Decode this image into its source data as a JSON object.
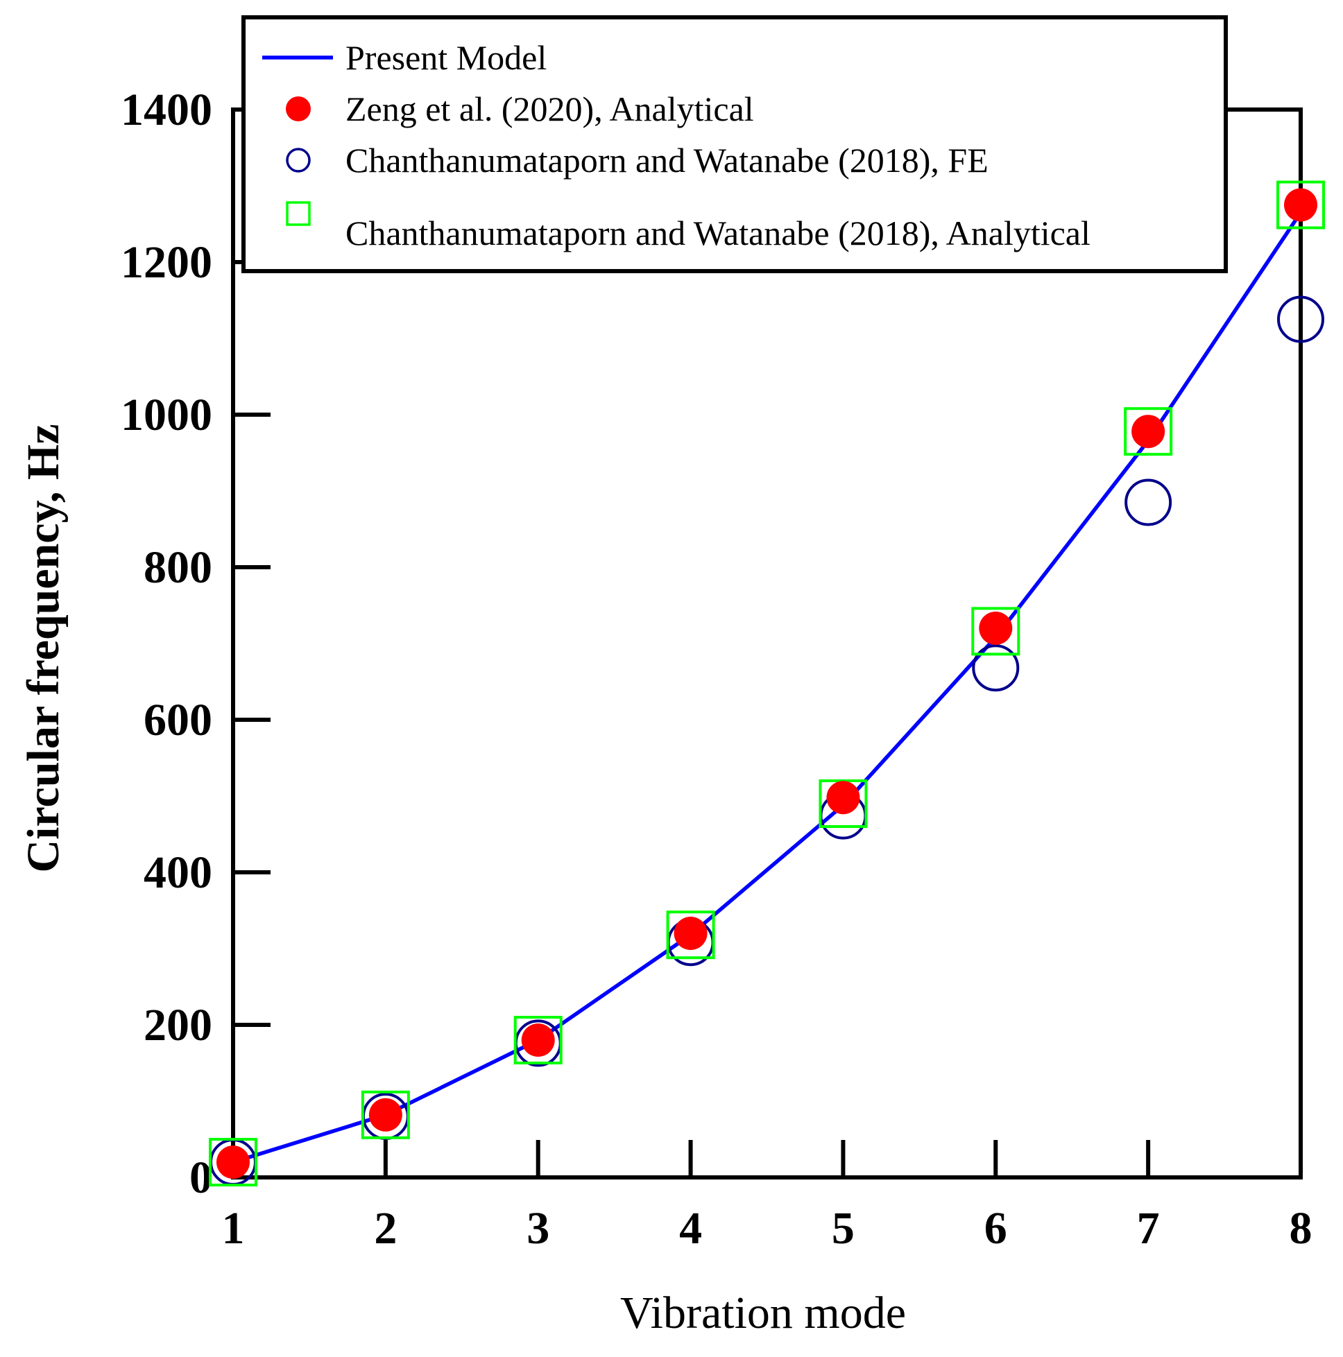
{
  "chart_data": {
    "type": "line",
    "title": "",
    "xlabel": "Vibration mode",
    "ylabel": "Circular frequency, Hz",
    "xlim": [
      1,
      8
    ],
    "ylim": [
      0,
      1400
    ],
    "x_ticks": [
      1,
      2,
      3,
      4,
      5,
      6,
      7,
      8
    ],
    "y_ticks": [
      0,
      200,
      400,
      600,
      800,
      1000,
      1200,
      1400
    ],
    "grid": false,
    "legend_position": "top",
    "series": [
      {
        "name": "Present Model",
        "marker": "line",
        "color": "#0000ff",
        "x": [
          1,
          2,
          3,
          4,
          5,
          6,
          7,
          8
        ],
        "values": [
          20,
          82,
          180,
          318,
          488,
          708,
          966,
          1265
        ]
      },
      {
        "name": "Zeng et al. (2020), Analytical",
        "marker": "filled-circle",
        "color": "#ff0000",
        "x": [
          1,
          2,
          3,
          4,
          5,
          6,
          7,
          8
        ],
        "values": [
          20,
          82,
          180,
          320,
          498,
          720,
          978,
          1275
        ]
      },
      {
        "name": "Chanthanumataporn and Watanabe (2018), FE",
        "marker": "open-circle",
        "color": "#00008b",
        "x": [
          1,
          2,
          3,
          4,
          5,
          6,
          7,
          8
        ],
        "values": [
          20,
          80,
          176,
          308,
          474,
          668,
          885,
          1125
        ]
      },
      {
        "name": "Chanthanumataporn and Watanabe (2018), Analytical",
        "marker": "open-square",
        "color": "#00ff00",
        "x": [
          1,
          2,
          3,
          4,
          5,
          6,
          7,
          8
        ],
        "values": [
          20,
          82,
          180,
          318,
          490,
          716,
          978,
          1275
        ]
      }
    ]
  }
}
